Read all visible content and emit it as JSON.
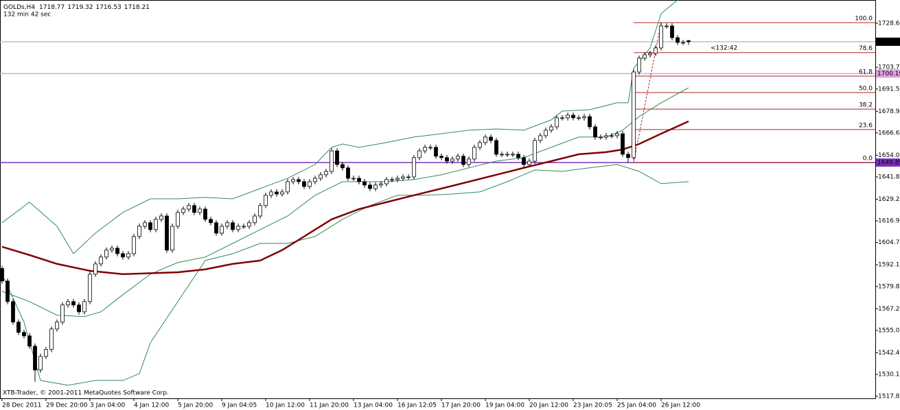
{
  "chart_data": {
    "type": "candlestick",
    "symbol": "GOLDs,H4",
    "subtitle": "132 min 42 sec",
    "timer": "<132:42",
    "footer": "XTB-Trader, © 2001-2011 MetaQuotes Software Corp.",
    "open": [
      1590.0,
      1582.9,
      1571.3,
      1559.7,
      1553.9,
      1551.9,
      1546.1,
      1532.6,
      1540.3,
      1544.2,
      1555.8,
      1559.7,
      1569.4,
      1571.3,
      1569.4,
      1565.5,
      1571.3,
      1586.8,
      1592.6,
      1596.5,
      1600.4,
      1601.5,
      1598.4,
      1596.5,
      1598.4,
      1608.1,
      1613.9,
      1615.9,
      1612.0,
      1617.8,
      1619.7,
      1600.4,
      1613.9,
      1621.7,
      1623.6,
      1625.6,
      1621.7,
      1623.6,
      1617.8,
      1615.9,
      1610.0,
      1613.9,
      1615.9,
      1612.0,
      1613.9,
      1613.9,
      1615.9,
      1619.7,
      1625.6,
      1631.4,
      1633.3,
      1632.1,
      1633.3,
      1639.1,
      1640.3,
      1639.1,
      1636.4,
      1639.1,
      1641.0,
      1643.0,
      1644.9,
      1656.5,
      1648.8,
      1646.9,
      1641.0,
      1641.0,
      1639.1,
      1637.2,
      1635.2,
      1637.2,
      1637.9,
      1640.3,
      1640.3,
      1641.0,
      1641.8,
      1641.8,
      1652.7,
      1656.5,
      1658.5,
      1658.5,
      1653.5,
      1652.7,
      1650.7,
      1651.9,
      1653.5,
      1648.8,
      1651.9,
      1658.5,
      1661.2,
      1664.3,
      1662.4,
      1654.6,
      1654.6,
      1654.6,
      1654.6,
      1652.7,
      1648.8,
      1650.7,
      1662.4,
      1665.1,
      1668.2,
      1670.1,
      1675.2,
      1675.2,
      1676.7,
      1675.2,
      1675.2,
      1675.9,
      1670.1,
      1664.3,
      1664.3,
      1665.1,
      1665.1,
      1666.2,
      1654.6,
      1652.7,
      1701.1,
      1708.9,
      1710.8,
      1711.6,
      1714.7,
      1727.1,
      1727.1,
      1720.5,
      1717.8,
      1718.77
    ],
    "high": [
      1591.5,
      1584.4,
      1572.8,
      1561.2,
      1555.4,
      1553.4,
      1547.6,
      1541.8,
      1545.7,
      1557.3,
      1561.2,
      1570.9,
      1572.8,
      1572.8,
      1570.9,
      1572.8,
      1588.3,
      1594.1,
      1598.0,
      1601.9,
      1603.0,
      1603.0,
      1599.9,
      1599.9,
      1609.6,
      1615.4,
      1617.4,
      1617.4,
      1619.3,
      1621.2,
      1621.2,
      1615.4,
      1623.2,
      1625.1,
      1627.1,
      1627.1,
      1625.1,
      1625.1,
      1619.3,
      1617.4,
      1615.4,
      1617.4,
      1617.4,
      1615.4,
      1615.4,
      1617.4,
      1621.2,
      1627.1,
      1632.9,
      1634.8,
      1634.8,
      1634.8,
      1640.6,
      1641.8,
      1641.8,
      1640.6,
      1640.6,
      1642.5,
      1644.5,
      1646.4,
      1658.0,
      1658.0,
      1650.3,
      1648.4,
      1642.5,
      1642.5,
      1640.6,
      1638.7,
      1638.7,
      1639.4,
      1641.8,
      1641.8,
      1642.5,
      1643.3,
      1643.3,
      1654.2,
      1658.0,
      1660.0,
      1660.0,
      1660.0,
      1655.0,
      1654.2,
      1653.4,
      1655.0,
      1655.0,
      1653.4,
      1660.0,
      1662.7,
      1665.8,
      1665.8,
      1663.9,
      1656.1,
      1656.1,
      1656.1,
      1656.1,
      1654.2,
      1652.2,
      1663.9,
      1666.6,
      1669.7,
      1671.6,
      1676.7,
      1676.7,
      1678.2,
      1678.2,
      1676.7,
      1677.4,
      1677.4,
      1671.6,
      1665.8,
      1666.6,
      1666.6,
      1667.7,
      1667.7,
      1656.1,
      1702.6,
      1710.4,
      1712.3,
      1713.1,
      1716.2,
      1729.0,
      1728.6,
      1728.6,
      1722.0,
      1719.3,
      1719.32
    ],
    "low": [
      1581.4,
      1569.8,
      1558.2,
      1552.4,
      1550.4,
      1544.6,
      1526.0,
      1531.1,
      1538.8,
      1542.7,
      1554.3,
      1558.2,
      1567.9,
      1567.9,
      1564.0,
      1564.0,
      1569.8,
      1585.3,
      1591.1,
      1595.0,
      1598.9,
      1596.9,
      1595.0,
      1595.0,
      1596.9,
      1606.6,
      1612.4,
      1610.5,
      1610.5,
      1616.3,
      1598.9,
      1598.9,
      1612.4,
      1620.2,
      1622.1,
      1620.2,
      1620.2,
      1616.3,
      1614.4,
      1608.5,
      1608.5,
      1612.4,
      1610.5,
      1610.5,
      1612.4,
      1612.4,
      1614.4,
      1618.2,
      1624.1,
      1629.9,
      1630.6,
      1630.6,
      1631.8,
      1637.6,
      1637.6,
      1634.9,
      1634.9,
      1637.6,
      1639.5,
      1641.5,
      1643.4,
      1647.3,
      1645.4,
      1639.5,
      1639.5,
      1637.6,
      1635.7,
      1633.7,
      1633.7,
      1635.7,
      1636.4,
      1638.8,
      1638.8,
      1639.5,
      1640.3,
      1640.3,
      1651.2,
      1655.0,
      1657.0,
      1652.0,
      1651.2,
      1649.2,
      1649.2,
      1650.4,
      1647.3,
      1647.3,
      1650.4,
      1657.0,
      1659.7,
      1660.9,
      1653.1,
      1653.1,
      1653.1,
      1653.1,
      1651.2,
      1647.3,
      1647.3,
      1649.2,
      1660.9,
      1663.6,
      1666.7,
      1668.6,
      1673.7,
      1673.7,
      1673.7,
      1673.7,
      1673.7,
      1668.6,
      1662.8,
      1662.8,
      1662.8,
      1663.6,
      1663.6,
      1653.1,
      1649.9,
      1651.2,
      1699.6,
      1707.4,
      1709.3,
      1710.1,
      1713.2,
      1725.6,
      1719.0,
      1716.3,
      1716.3,
      1716.53
    ],
    "close": [
      1582.9,
      1571.3,
      1559.7,
      1553.9,
      1551.9,
      1546.1,
      1532.6,
      1540.3,
      1544.2,
      1555.8,
      1559.7,
      1569.4,
      1571.3,
      1569.4,
      1565.5,
      1571.3,
      1586.8,
      1592.6,
      1596.5,
      1600.4,
      1601.5,
      1598.4,
      1596.5,
      1598.4,
      1608.1,
      1613.9,
      1615.9,
      1612.0,
      1617.8,
      1619.7,
      1600.4,
      1613.9,
      1621.7,
      1623.6,
      1625.6,
      1621.7,
      1623.6,
      1617.8,
      1615.9,
      1610.0,
      1613.9,
      1615.9,
      1612.0,
      1613.9,
      1613.9,
      1615.9,
      1619.7,
      1625.6,
      1631.4,
      1633.3,
      1632.1,
      1633.3,
      1639.1,
      1640.3,
      1639.1,
      1636.4,
      1639.1,
      1641.0,
      1643.0,
      1644.9,
      1656.5,
      1648.8,
      1646.9,
      1641.0,
      1641.0,
      1639.1,
      1637.2,
      1635.2,
      1637.2,
      1637.9,
      1640.3,
      1640.3,
      1641.0,
      1641.8,
      1641.8,
      1652.7,
      1656.5,
      1658.5,
      1658.5,
      1653.5,
      1652.7,
      1650.7,
      1651.9,
      1653.5,
      1648.8,
      1651.9,
      1658.5,
      1661.2,
      1664.3,
      1662.4,
      1654.6,
      1654.6,
      1654.6,
      1654.6,
      1652.7,
      1648.8,
      1650.7,
      1662.4,
      1665.1,
      1668.2,
      1670.1,
      1675.2,
      1675.2,
      1676.7,
      1675.2,
      1675.2,
      1675.9,
      1670.1,
      1664.3,
      1664.3,
      1665.1,
      1665.1,
      1666.2,
      1654.6,
      1652.7,
      1701.1,
      1708.9,
      1710.8,
      1711.6,
      1714.7,
      1727.1,
      1727.1,
      1720.5,
      1717.8,
      1717.8,
      1718.21
    ],
    "xlim": [
      -0.375,
      159
    ],
    "xticks": [
      {
        "value": 0,
        "label": "28 Dec 2011"
      },
      {
        "value": 8,
        "label": "29 Dec 20:00"
      },
      {
        "value": 16,
        "label": "3 Jan 04:00"
      },
      {
        "value": 24,
        "label": "4 Jan 12:00"
      },
      {
        "value": 32,
        "label": "5 Jan 20:00"
      },
      {
        "value": 40,
        "label": "9 Jan 04:05"
      },
      {
        "value": 48,
        "label": "10 Jan 12:00"
      },
      {
        "value": 56,
        "label": "11 Jan 20:00"
      },
      {
        "value": 64,
        "label": "13 Jan 04:00"
      },
      {
        "value": 72,
        "label": "16 Jan 12:05"
      },
      {
        "value": 80,
        "label": "17 Jan 20:00"
      },
      {
        "value": 88,
        "label": "19 Jan 04:00"
      },
      {
        "value": 96,
        "label": "20 Jan 12:00"
      },
      {
        "value": 104,
        "label": "23 Jan 20:05"
      },
      {
        "value": 112,
        "label": "25 Jan 04:00"
      },
      {
        "value": 120,
        "label": "26 Jan 12:00"
      }
    ],
    "ylim": [
      1516.6,
      1741.8
    ],
    "yticks": [
      {
        "value": 1728.6,
        "label": "1728.60"
      },
      1703.75,
      {
        "value": 1691.5,
        "label": "1691.50"
      },
      {
        "value": 1678.9,
        "label": "1678.90"
      },
      1666.65,
      1654.05,
      {
        "value": 1641.8,
        "label": "1641.80"
      },
      {
        "value": 1629.2,
        "label": "1629.20"
      },
      1616.95,
      {
        "value": 1604.7,
        "label": "1604.70"
      },
      {
        "value": 1592.1,
        "label": "1592.10"
      },
      1579.85,
      1567.25,
      {
        "value": 1555.0,
        "label": "1555.00"
      },
      {
        "value": 1542.4,
        "label": "1542.40"
      },
      1530.15,
      {
        "value": 1517.8,
        "label": "1517.80"
      }
    ],
    "series": [
      {
        "color": "#2e8b57",
        "x": [
          0,
          5,
          10,
          13,
          17,
          22,
          27,
          32,
          37,
          42,
          47,
          52,
          57,
          60,
          62,
          65,
          70,
          75,
          80,
          85,
          90,
          95,
          100,
          102,
          107,
          112,
          114,
          115,
          118,
          120,
          123
        ],
        "values": [
          1615.9,
          1627.5,
          1613.9,
          1598.4,
          1610.0,
          1621.7,
          1629.4,
          1629.4,
          1630.2,
          1629.4,
          1635.2,
          1641.0,
          1648.8,
          1658.5,
          1660.4,
          1658.5,
          1661.2,
          1664.3,
          1666.2,
          1668.2,
          1668.9,
          1668.2,
          1674.0,
          1679.0,
          1679.8,
          1683.7,
          1683.7,
          1703.1,
          1714.7,
          1734.1,
          1741.8
        ]
      },
      {
        "color": "#2e8b57",
        "x": [
          0,
          5,
          10,
          15,
          18,
          22,
          27,
          32,
          37,
          42,
          47,
          52,
          57,
          62,
          65,
          70,
          75,
          80,
          85,
          90,
          95,
          100,
          105,
          110,
          113,
          116,
          120,
          125
        ],
        "values": [
          1577.1,
          1571.3,
          1563.6,
          1562.8,
          1565.5,
          1575.2,
          1586.8,
          1593.4,
          1596.5,
          1604.2,
          1612.0,
          1619.7,
          1631.4,
          1639.1,
          1639.1,
          1639.1,
          1640.3,
          1643.0,
          1646.9,
          1650.7,
          1652.7,
          1658.5,
          1664.3,
          1664.3,
          1668.2,
          1675.9,
          1683.7,
          1692.2
        ]
      },
      {
        "color": "#2e8b57",
        "x": [
          0,
          4,
          7,
          12,
          17,
          22,
          25,
          27,
          32,
          37,
          42,
          47,
          52,
          57,
          62,
          67,
          72,
          77,
          82,
          87,
          92,
          97,
          102,
          107,
          112,
          116,
          120,
          125
        ],
        "values": [
          1586.8,
          1559.7,
          1526.7,
          1524.0,
          1526.7,
          1526.7,
          1530.6,
          1548.0,
          1571.3,
          1594.5,
          1598.4,
          1604.2,
          1604.2,
          1608.1,
          1617.8,
          1625.6,
          1631.4,
          1631.4,
          1632.1,
          1633.3,
          1639.1,
          1645.7,
          1644.9,
          1646.9,
          1648.8,
          1644.9,
          1638.0,
          1639.1
        ]
      },
      {
        "color": "#800000",
        "x": [
          0,
          5,
          10,
          16,
          22,
          32,
          37,
          42,
          47,
          51,
          55,
          60,
          65,
          70,
          75,
          80,
          85,
          90,
          95,
          100,
          105,
          110,
          113,
          116,
          120,
          125
        ],
        "values": [
          1602.3,
          1597.6,
          1592.6,
          1588.7,
          1586.8,
          1587.9,
          1589.5,
          1592.6,
          1594.5,
          1600.4,
          1608.1,
          1617.8,
          1623.6,
          1627.5,
          1631.4,
          1635.2,
          1639.1,
          1643.0,
          1646.9,
          1650.7,
          1654.6,
          1655.8,
          1657.3,
          1660.4,
          1666.2,
          1673.2
        ]
      }
    ],
    "fibo": {
      "color": "#b22222",
      "x": [
        115,
        120
      ],
      "levels": [
        {
          "value": 1729.0,
          "label": "100.0"
        },
        {
          "value": 1712.07,
          "label": "78.6"
        },
        {
          "value": 1698.78,
          "label": "61.8"
        },
        {
          "value": 1689.45,
          "label": "50.0"
        },
        {
          "value": 1680.11,
          "label": "38.2"
        },
        {
          "value": 1668.56,
          "label": "23.6"
        },
        {
          "value": 1649.89,
          "label": "0.0"
        }
      ]
    },
    "hlines": [
      {
        "value": 1718.21,
        "color": "#c0c0c0",
        "box": "#000000"
      },
      {
        "value": 1700.19,
        "color": "#dda0dd",
        "box": "#dda0dd"
      },
      {
        "value": 1649.89,
        "color": "#7b2fbe",
        "box": "#7b2fbe"
      }
    ],
    "bull_color": "#ffffff",
    "bear_color": "#000000"
  }
}
